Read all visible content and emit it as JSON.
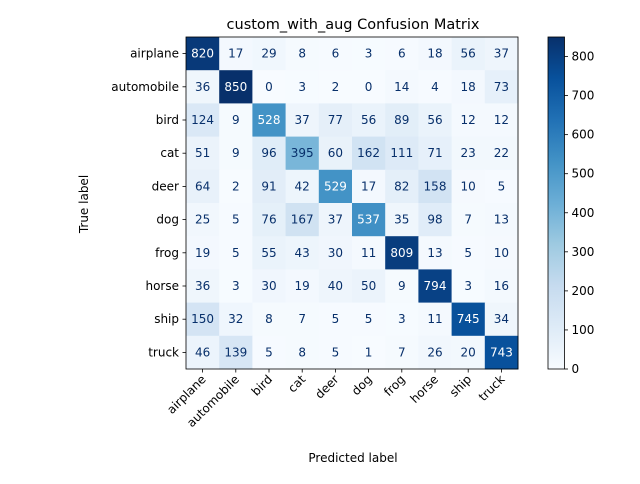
{
  "chart_data": {
    "type": "heatmap",
    "title": "custom_with_aug Confusion Matrix",
    "xlabel": "Predicted label",
    "ylabel": "True label",
    "classes": [
      "airplane",
      "automobile",
      "bird",
      "cat",
      "deer",
      "dog",
      "frog",
      "horse",
      "ship",
      "truck"
    ],
    "matrix": [
      [
        820,
        17,
        29,
        8,
        6,
        3,
        6,
        18,
        56,
        37
      ],
      [
        36,
        850,
        0,
        3,
        2,
        0,
        14,
        4,
        18,
        73
      ],
      [
        124,
        9,
        528,
        37,
        77,
        56,
        89,
        56,
        12,
        12
      ],
      [
        51,
        9,
        96,
        395,
        60,
        162,
        111,
        71,
        23,
        22
      ],
      [
        64,
        2,
        91,
        42,
        529,
        17,
        82,
        158,
        10,
        5
      ],
      [
        25,
        5,
        76,
        167,
        37,
        537,
        35,
        98,
        7,
        13
      ],
      [
        19,
        5,
        55,
        43,
        30,
        11,
        809,
        13,
        5,
        10
      ],
      [
        36,
        3,
        30,
        19,
        40,
        50,
        9,
        794,
        3,
        16
      ],
      [
        150,
        32,
        8,
        7,
        5,
        5,
        3,
        11,
        745,
        34
      ],
      [
        46,
        139,
        5,
        8,
        5,
        1,
        7,
        26,
        20,
        743
      ]
    ],
    "colormap": "Blues",
    "vmin": 0,
    "vmax": 850,
    "colorbar_ticks": [
      0,
      100,
      200,
      300,
      400,
      500,
      600,
      700,
      800
    ],
    "grid": false
  }
}
